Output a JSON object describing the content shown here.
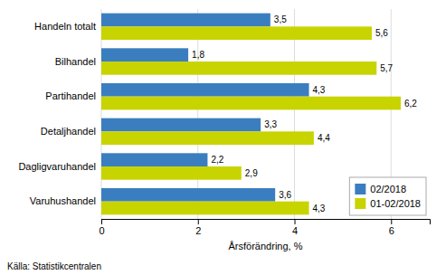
{
  "chart_data": {
    "type": "bar",
    "orientation": "horizontal",
    "categories": [
      "Varuhushandel",
      "Dagligvaruhandel",
      "Detaljhandel",
      "Partihandel",
      "Bilhandel",
      "Handeln totalt"
    ],
    "series": [
      {
        "name": "02/2018",
        "color": "#3B7EC0",
        "values": [
          3.6,
          2.2,
          3.3,
          4.3,
          1.8,
          3.5
        ],
        "value_labels": [
          "3,6",
          "2,2",
          "3,3",
          "4,3",
          "1,8",
          "3,5"
        ]
      },
      {
        "name": "01-02/2018",
        "color": "#C8D400",
        "values": [
          4.3,
          2.9,
          4.4,
          6.2,
          5.7,
          5.6
        ],
        "value_labels": [
          "4,3",
          "2,9",
          "4,4",
          "6,2",
          "5,7",
          "5,6"
        ]
      }
    ],
    "xlabel": "Årsförändring, %",
    "xlim": [
      0,
      6.8
    ],
    "xticks": [
      0,
      2,
      4,
      6
    ],
    "grid": true,
    "legend": "lower right",
    "data_labels": true,
    "annotations": [
      "Källa: Statistikcentralen"
    ]
  }
}
